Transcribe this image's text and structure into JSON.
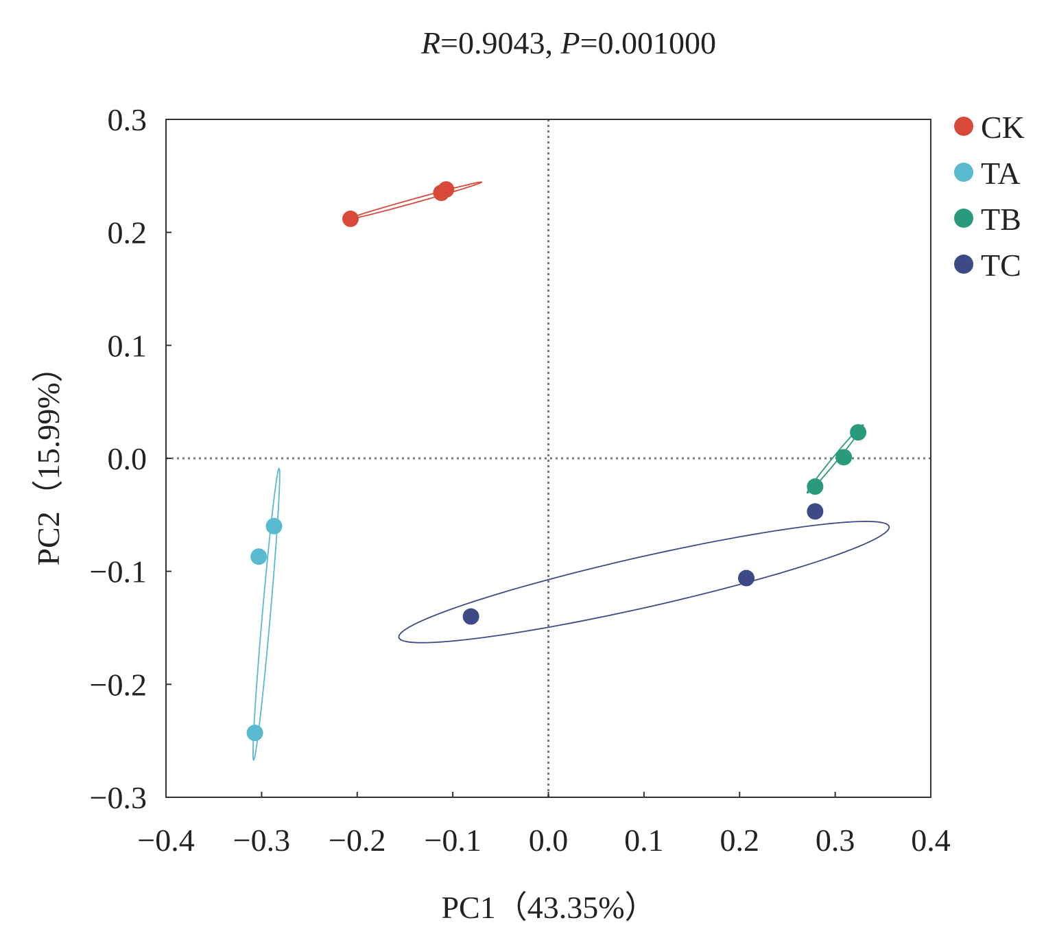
{
  "chart_data": {
    "type": "scatter",
    "title": {
      "r_symbol": "R",
      "r_value": "=0.9043, ",
      "p_symbol": "P",
      "p_value": "=0.001000"
    },
    "xlabel": "PC1（43.35%）",
    "ylabel": "PC2（15.99%）",
    "xlim": [
      -0.4,
      0.4
    ],
    "ylim": [
      -0.3,
      0.3
    ],
    "xticks": [
      -0.4,
      -0.3,
      -0.2,
      -0.1,
      0.0,
      0.1,
      0.2,
      0.3,
      0.4
    ],
    "yticks": [
      -0.3,
      -0.2,
      -0.1,
      0.0,
      0.1,
      0.2,
      0.3
    ],
    "xtick_labels": [
      "−0.4",
      "−0.3",
      "−0.2",
      "−0.1",
      "0.0",
      "0.1",
      "0.2",
      "0.3",
      "0.4"
    ],
    "ytick_labels": [
      "−0.3",
      "−0.2",
      "−0.1",
      "0.0",
      "0.1",
      "0.2",
      "0.3"
    ],
    "reference_lines": {
      "x": 0.0,
      "y": 0.0,
      "style": "dotted"
    },
    "grid": false,
    "legend_position": "right-top",
    "series": [
      {
        "name": "CK",
        "color": "#d9493a",
        "points": [
          [
            -0.207,
            0.212
          ],
          [
            -0.112,
            0.235
          ],
          [
            -0.107,
            0.238
          ]
        ],
        "ellipse": {
          "center": [
            -0.14,
            0.228
          ],
          "semi_major": 0.072,
          "semi_minor": 0.0018,
          "angle_deg": 13.2
        }
      },
      {
        "name": "TA",
        "color": "#58b9cf",
        "points": [
          [
            -0.303,
            -0.087
          ],
          [
            -0.287,
            -0.06
          ],
          [
            -0.307,
            -0.243
          ]
        ],
        "ellipse": {
          "center": [
            -0.295,
            -0.138
          ],
          "semi_major": 0.1297,
          "semi_minor": 0.0042,
          "angle_deg": 84.1
        }
      },
      {
        "name": "TB",
        "color": "#2a9a7c",
        "points": [
          [
            0.279,
            -0.025
          ],
          [
            0.309,
            0.001
          ],
          [
            0.324,
            0.023
          ]
        ],
        "ellipse": {
          "center": [
            0.3,
            -0.0005
          ],
          "semi_major": 0.042,
          "semi_minor": 0.0025,
          "angle_deg": 45.8
        }
      },
      {
        "name": "TC",
        "color": "#3e4a86",
        "points": [
          [
            -0.081,
            -0.14
          ],
          [
            0.207,
            -0.106
          ],
          [
            0.279,
            -0.047
          ]
        ],
        "ellipse": {
          "center": [
            0.1,
            -0.1095
          ],
          "semi_major": 0.2611,
          "semi_minor": 0.0225,
          "angle_deg": 10.8
        }
      }
    ]
  }
}
